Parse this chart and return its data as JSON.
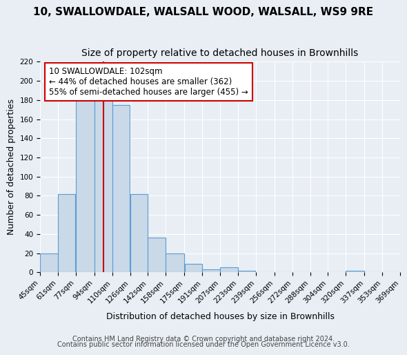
{
  "title_line1": "10, SWALLOWDALE, WALSALL WOOD, WALSALL, WS9 9RE",
  "title_line2": "Size of property relative to detached houses in Brownhills",
  "xlabel": "Distribution of detached houses by size in Brownhills",
  "ylabel": "Number of detached properties",
  "bin_edges": [
    45,
    61,
    77,
    94,
    110,
    126,
    142,
    158,
    175,
    191,
    207,
    223,
    239,
    256,
    272,
    288,
    304,
    320,
    337,
    353,
    369
  ],
  "bin_labels": [
    "45sqm",
    "61sqm",
    "77sqm",
    "94sqm",
    "110sqm",
    "126sqm",
    "142sqm",
    "158sqm",
    "175sqm",
    "191sqm",
    "207sqm",
    "223sqm",
    "239sqm",
    "256sqm",
    "272sqm",
    "288sqm",
    "304sqm",
    "320sqm",
    "337sqm",
    "353sqm",
    "369sqm"
  ],
  "bar_heights": [
    20,
    82,
    180,
    180,
    175,
    82,
    36,
    20,
    9,
    3,
    5,
    2,
    0,
    0,
    0,
    0,
    0,
    2,
    0,
    0
  ],
  "bar_facecolor": "#c9d9e8",
  "bar_edgecolor": "#5b9bd5",
  "vline_x": 102,
  "vline_color": "#cc0000",
  "annotation_box_text": "10 SWALLOWDALE: 102sqm\n← 44% of detached houses are smaller (362)\n55% of semi-detached houses are larger (455) →",
  "ylim": [
    0,
    220
  ],
  "yticks": [
    0,
    20,
    40,
    60,
    80,
    100,
    120,
    140,
    160,
    180,
    200,
    220
  ],
  "background_color": "#e8eef4",
  "plot_background": "#e8eef4",
  "grid_color": "#ffffff",
  "footer_line1": "Contains HM Land Registry data © Crown copyright and database right 2024.",
  "footer_line2": "Contains public sector information licensed under the Open Government Licence v3.0.",
  "title_fontsize": 11,
  "subtitle_fontsize": 10,
  "axis_label_fontsize": 9,
  "tick_fontsize": 7.5,
  "annotation_fontsize": 8.5,
  "footer_fontsize": 7
}
